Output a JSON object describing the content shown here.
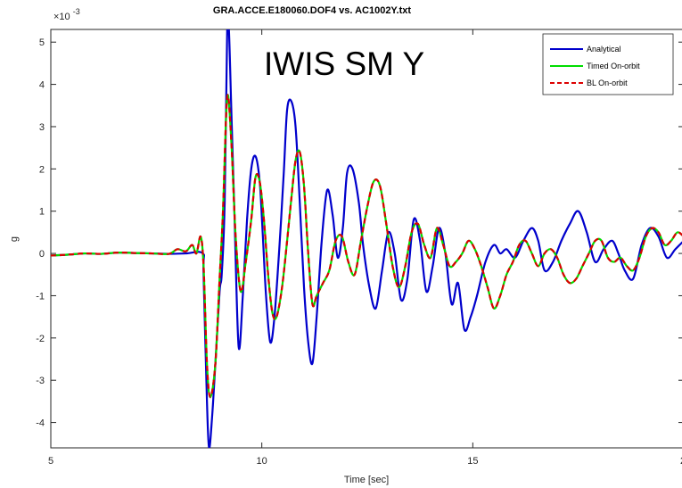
{
  "chart_data": {
    "type": "line",
    "title": "GRA.ACCE.E180060.DOF4 vs. AC1002Y.txt",
    "annotation": "IWIS SM Y",
    "xlabel": "Time [sec]",
    "ylabel": "g",
    "y_exponent_prefix": "×10",
    "y_exponent_power": "-3",
    "xlim": [
      5,
      20
    ],
    "ylim": [
      -4.6,
      5.3
    ],
    "xticks": [
      5,
      10,
      15
    ],
    "xtick_labels": [
      "5",
      "10",
      "15"
    ],
    "xtick_last_label_partial": "2",
    "yticks": [
      -4,
      -3,
      -2,
      -1,
      0,
      1,
      2,
      3,
      4,
      5
    ],
    "ytick_labels": [
      "-4",
      "-3",
      "-2",
      "-1",
      "0",
      "1",
      "2",
      "3",
      "4",
      "5"
    ],
    "legend_position": "top-right",
    "grid": false,
    "series": [
      {
        "name": "Analytical",
        "color": "#0000cc",
        "style": "solid",
        "x": [
          5.0,
          5.4,
          5.8,
          6.2,
          6.6,
          7.0,
          7.4,
          7.8,
          8.2,
          8.6,
          8.62,
          8.7,
          8.75,
          8.82,
          8.9,
          9.0,
          9.05,
          9.12,
          9.18,
          9.22,
          9.28,
          9.35,
          9.45,
          9.55,
          9.65,
          9.75,
          9.85,
          9.95,
          10.02,
          10.1,
          10.2,
          10.3,
          10.42,
          10.52,
          10.6,
          10.7,
          10.8,
          10.9,
          11.0,
          11.1,
          11.2,
          11.3,
          11.42,
          11.55,
          11.68,
          11.8,
          11.92,
          12.02,
          12.15,
          12.3,
          12.4,
          12.55,
          12.7,
          12.85,
          13.0,
          13.15,
          13.3,
          13.45,
          13.6,
          13.75,
          13.9,
          14.05,
          14.2,
          14.35,
          14.5,
          14.65,
          14.8,
          14.95,
          15.1,
          15.3,
          15.5,
          15.65,
          15.8,
          16.0,
          16.2,
          16.4,
          16.55,
          16.7,
          16.9,
          17.1,
          17.3,
          17.5,
          17.7,
          17.9,
          18.1,
          18.3,
          18.45,
          18.6,
          18.8,
          19.0,
          19.2,
          19.4,
          19.6,
          19.8,
          20.0
        ],
        "values": [
          -0.05,
          -0.03,
          0.0,
          -0.01,
          0.02,
          0.01,
          0.0,
          -0.01,
          0.0,
          0.0,
          -0.5,
          -3.5,
          -4.6,
          -3.9,
          -2.6,
          -0.9,
          -0.5,
          1.2,
          5.3,
          5.3,
          3.3,
          1.0,
          -2.2,
          -1.0,
          0.8,
          2.0,
          2.3,
          1.7,
          0.5,
          -1.0,
          -2.1,
          -1.5,
          0.2,
          1.9,
          3.4,
          3.6,
          3.0,
          1.2,
          -0.8,
          -2.1,
          -2.6,
          -1.5,
          0.3,
          1.5,
          0.9,
          -0.1,
          0.6,
          1.9,
          2.0,
          1.2,
          0.2,
          -0.8,
          -1.3,
          -0.4,
          0.5,
          0.0,
          -1.1,
          -0.6,
          0.8,
          0.3,
          -0.9,
          -0.3,
          0.6,
          0.0,
          -1.2,
          -0.7,
          -1.8,
          -1.5,
          -1.0,
          -0.2,
          0.2,
          0.0,
          0.1,
          -0.1,
          0.3,
          0.6,
          0.3,
          -0.4,
          -0.2,
          0.3,
          0.7,
          1.0,
          0.5,
          -0.2,
          0.1,
          0.3,
          0.0,
          -0.4,
          -0.6,
          0.2,
          0.6,
          0.4,
          -0.1,
          0.1,
          0.3
        ]
      },
      {
        "name": "Timed On-orbit",
        "color": "#00dd00",
        "style": "solid",
        "x": [
          5.0,
          5.4,
          5.8,
          6.2,
          6.6,
          7.0,
          7.4,
          7.8,
          8.0,
          8.2,
          8.35,
          8.45,
          8.55,
          8.62,
          8.7,
          8.78,
          8.9,
          9.0,
          9.08,
          9.18,
          9.28,
          9.38,
          9.5,
          9.62,
          9.75,
          9.85,
          9.95,
          10.05,
          10.15,
          10.25,
          10.35,
          10.48,
          10.6,
          10.7,
          10.8,
          10.9,
          11.0,
          11.1,
          11.2,
          11.3,
          11.45,
          11.6,
          11.75,
          11.9,
          12.05,
          12.2,
          12.35,
          12.5,
          12.65,
          12.8,
          12.95,
          13.1,
          13.25,
          13.4,
          13.55,
          13.7,
          13.85,
          14.0,
          14.15,
          14.3,
          14.45,
          14.6,
          14.75,
          14.9,
          15.05,
          15.2,
          15.35,
          15.5,
          15.65,
          15.8,
          15.95,
          16.1,
          16.25,
          16.4,
          16.55,
          16.7,
          16.85,
          17.0,
          17.15,
          17.3,
          17.45,
          17.6,
          17.75,
          17.9,
          18.05,
          18.2,
          18.35,
          18.5,
          18.65,
          18.8,
          18.95,
          19.1,
          19.25,
          19.4,
          19.55,
          19.7,
          19.85,
          20.0
        ],
        "values": [
          -0.05,
          -0.03,
          0.0,
          -0.01,
          0.02,
          0.01,
          0.0,
          -0.01,
          0.1,
          0.05,
          0.2,
          0.0,
          0.4,
          -0.3,
          -2.6,
          -3.4,
          -2.6,
          -0.6,
          1.0,
          3.7,
          2.6,
          0.4,
          -0.9,
          -0.2,
          0.8,
          1.8,
          1.7,
          0.8,
          -0.5,
          -1.4,
          -1.5,
          -0.8,
          0.3,
          1.3,
          2.2,
          2.4,
          1.6,
          0.0,
          -1.2,
          -1.0,
          -0.7,
          -0.4,
          0.3,
          0.4,
          -0.2,
          -0.5,
          0.3,
          1.1,
          1.7,
          1.6,
          0.7,
          -0.3,
          -0.8,
          -0.3,
          0.5,
          0.7,
          0.2,
          -0.1,
          0.6,
          0.2,
          -0.3,
          -0.2,
          0.0,
          0.3,
          0.1,
          -0.3,
          -0.8,
          -1.3,
          -1.0,
          -0.5,
          -0.2,
          0.2,
          0.3,
          0.0,
          -0.3,
          0.0,
          0.1,
          -0.1,
          -0.5,
          -0.7,
          -0.6,
          -0.3,
          0.0,
          0.3,
          0.3,
          -0.1,
          -0.2,
          -0.1,
          -0.3,
          -0.4,
          -0.1,
          0.4,
          0.6,
          0.5,
          0.2,
          0.3,
          0.5,
          0.4
        ]
      },
      {
        "name": "BL On-orbit",
        "color": "#dd0000",
        "style": "dashed",
        "x": [
          5.0,
          5.4,
          5.8,
          6.2,
          6.6,
          7.0,
          7.4,
          7.8,
          8.0,
          8.2,
          8.35,
          8.45,
          8.55,
          8.62,
          8.7,
          8.78,
          8.9,
          9.0,
          9.08,
          9.18,
          9.28,
          9.38,
          9.5,
          9.62,
          9.75,
          9.85,
          9.95,
          10.05,
          10.15,
          10.25,
          10.35,
          10.48,
          10.6,
          10.7,
          10.8,
          10.9,
          11.0,
          11.1,
          11.2,
          11.3,
          11.45,
          11.6,
          11.75,
          11.9,
          12.05,
          12.2,
          12.35,
          12.5,
          12.65,
          12.8,
          12.95,
          13.1,
          13.25,
          13.4,
          13.55,
          13.7,
          13.85,
          14.0,
          14.15,
          14.3,
          14.45,
          14.6,
          14.75,
          14.9,
          15.05,
          15.2,
          15.35,
          15.5,
          15.65,
          15.8,
          15.95,
          16.1,
          16.25,
          16.4,
          16.55,
          16.7,
          16.85,
          17.0,
          17.15,
          17.3,
          17.45,
          17.6,
          17.75,
          17.9,
          18.05,
          18.2,
          18.35,
          18.5,
          18.65,
          18.8,
          18.95,
          19.1,
          19.25,
          19.4,
          19.55,
          19.7,
          19.85,
          20.0
        ],
        "values": [
          -0.05,
          -0.03,
          0.0,
          -0.01,
          0.02,
          0.01,
          0.0,
          -0.01,
          0.1,
          0.05,
          0.2,
          0.0,
          0.4,
          -0.3,
          -2.6,
          -3.4,
          -2.6,
          -0.6,
          1.0,
          3.7,
          2.6,
          0.4,
          -0.9,
          -0.2,
          0.8,
          1.8,
          1.7,
          0.8,
          -0.5,
          -1.4,
          -1.5,
          -0.8,
          0.3,
          1.3,
          2.2,
          2.4,
          1.6,
          0.0,
          -1.2,
          -1.0,
          -0.7,
          -0.4,
          0.3,
          0.4,
          -0.2,
          -0.5,
          0.3,
          1.1,
          1.7,
          1.6,
          0.7,
          -0.3,
          -0.8,
          -0.3,
          0.5,
          0.7,
          0.2,
          -0.1,
          0.6,
          0.2,
          -0.3,
          -0.2,
          0.0,
          0.3,
          0.1,
          -0.3,
          -0.8,
          -1.3,
          -1.0,
          -0.5,
          -0.2,
          0.2,
          0.3,
          0.0,
          -0.3,
          0.0,
          0.1,
          -0.1,
          -0.5,
          -0.7,
          -0.6,
          -0.3,
          0.0,
          0.3,
          0.3,
          -0.1,
          -0.2,
          -0.1,
          -0.3,
          -0.4,
          -0.1,
          0.4,
          0.6,
          0.5,
          0.2,
          0.3,
          0.5,
          0.4
        ]
      }
    ]
  }
}
